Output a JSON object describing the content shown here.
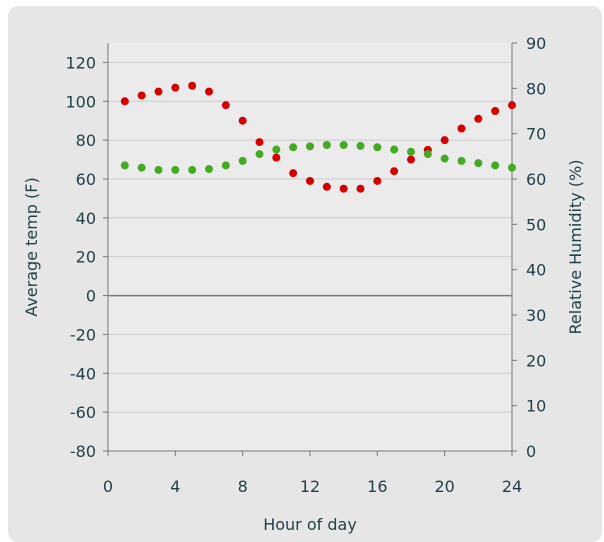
{
  "chart_data": {
    "type": "scatter",
    "title": "",
    "xlabel": "Hour of day",
    "ylabel": "Average temp (F)",
    "y2label": "Relative Humidity (%)",
    "xlim": [
      0,
      24
    ],
    "ylim": [
      -80,
      130
    ],
    "y2lim": [
      0,
      90
    ],
    "xticks": [
      "0",
      "4",
      "8",
      "12",
      "16",
      "20",
      "24"
    ],
    "yticks": [
      "120",
      "100",
      "80",
      "60",
      "40",
      "20",
      "0",
      "-20",
      "-40",
      "-60",
      "-80"
    ],
    "y2ticks": [
      "90",
      "80",
      "70",
      "60",
      "50",
      "40",
      "30",
      "20",
      "10",
      "0"
    ],
    "grid": true,
    "legend": "none",
    "series": [
      {
        "axis": "left",
        "color": "#d40000",
        "x": [
          1,
          2,
          3,
          4,
          5,
          6,
          7,
          8,
          9,
          10,
          11,
          12,
          13,
          14,
          15,
          16,
          17,
          18,
          19,
          20,
          21,
          22,
          23,
          24
        ],
        "values": [
          100,
          103,
          105,
          107,
          108,
          105,
          98,
          90,
          79,
          71,
          63,
          59,
          56,
          55,
          55,
          59,
          64,
          70,
          75,
          80,
          86,
          91,
          95,
          98
        ]
      },
      {
        "axis": "right",
        "color": "#44aa22",
        "x": [
          1,
          2,
          3,
          4,
          5,
          6,
          7,
          8,
          9,
          10,
          11,
          12,
          13,
          14,
          15,
          16,
          17,
          18,
          19,
          20,
          21,
          22,
          23,
          24
        ],
        "values": [
          63,
          62.5,
          62,
          62,
          62,
          62.2,
          63,
          64,
          65.5,
          66.5,
          67,
          67.2,
          67.5,
          67.5,
          67.3,
          67,
          66.5,
          66,
          65.5,
          64.5,
          64,
          63.5,
          63,
          62.5
        ]
      }
    ]
  }
}
